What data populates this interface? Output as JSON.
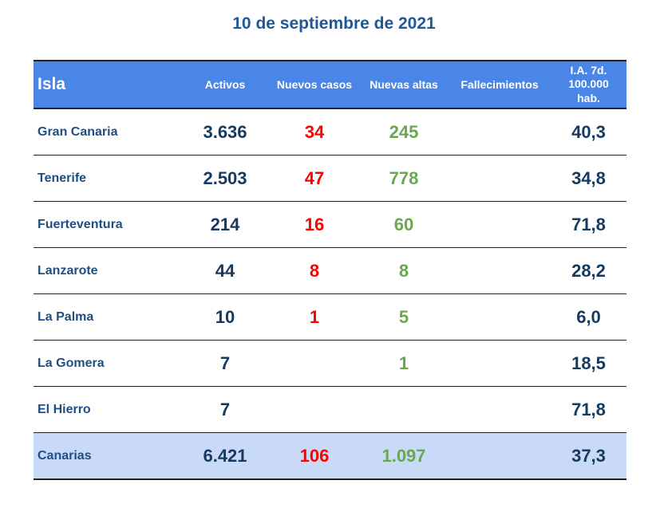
{
  "title": "10 de septiembre de 2021",
  "headers": [
    "Isla",
    "Activos",
    "Nuevos casos",
    "Nuevas altas",
    "Fallecimientos",
    "I.A. 7d. 100.000 hab."
  ],
  "rows": [
    {
      "isla": "Gran Canaria",
      "activos": "3.636",
      "nuevos": "34",
      "altas": "245",
      "fallecimientos": "",
      "ia": "40,3"
    },
    {
      "isla": "Tenerife",
      "activos": "2.503",
      "nuevos": "47",
      "altas": "778",
      "fallecimientos": "",
      "ia": "34,8"
    },
    {
      "isla": "Fuerteventura",
      "activos": "214",
      "nuevos": "16",
      "altas": "60",
      "fallecimientos": "",
      "ia": "71,8"
    },
    {
      "isla": "Lanzarote",
      "activos": "44",
      "nuevos": "8",
      "altas": "8",
      "fallecimientos": "",
      "ia": "28,2"
    },
    {
      "isla": "La Palma",
      "activos": "10",
      "nuevos": "1",
      "altas": "5",
      "fallecimientos": "",
      "ia": "6,0"
    },
    {
      "isla": "La Gomera",
      "activos": "7",
      "nuevos": "",
      "altas": "1",
      "fallecimientos": "",
      "ia": "18,5"
    },
    {
      "isla": "El Hierro",
      "activos": "7",
      "nuevos": "",
      "altas": "",
      "fallecimientos": "",
      "ia": "71,8"
    }
  ],
  "total": {
    "isla": "Canarias",
    "activos": "6.421",
    "nuevos": "106",
    "altas": "1.097",
    "fallecimientos": "",
    "ia": "37,3"
  },
  "colors": {
    "header_bg": "#4a86e8",
    "total_bg": "#c9daf8",
    "new_cases": "#ff0000",
    "discharges": "#6aa84f",
    "title": "#1f5896"
  }
}
